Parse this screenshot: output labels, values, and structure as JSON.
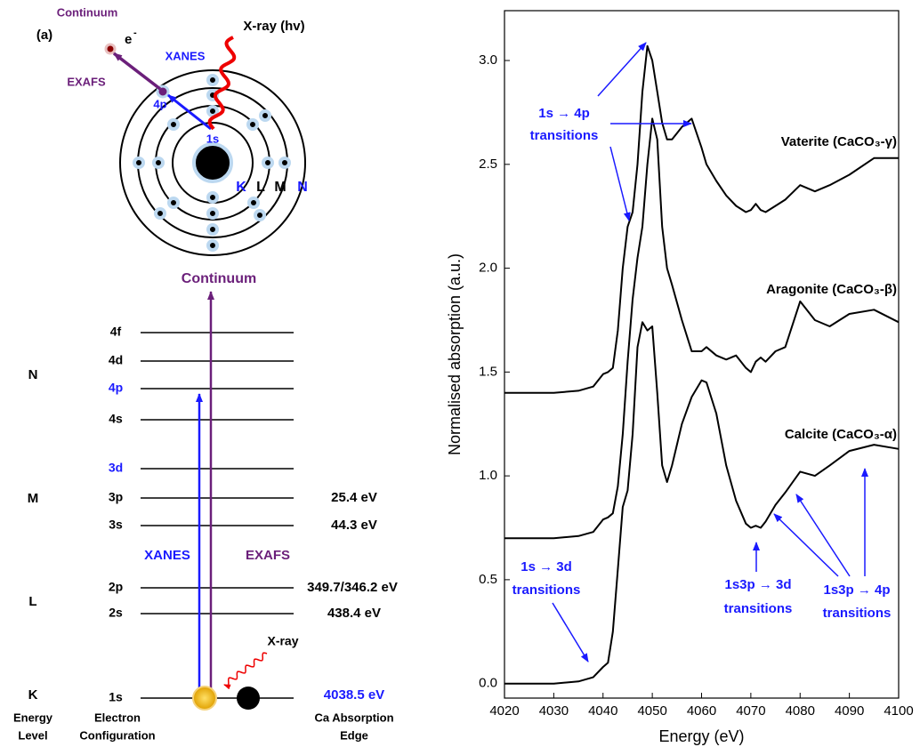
{
  "diagram": {
    "panel_label": "(a)",
    "atom": {
      "continuum": "Continuum",
      "electron": "e",
      "electron_charge": "-",
      "xray": "X-ray (hv)",
      "xanes": "XANES",
      "exafs": "EXAFS",
      "orbital_4p": "4p",
      "orbital_1s": "1s",
      "shells": [
        "K",
        "L",
        "M",
        "N"
      ]
    },
    "levels": {
      "continuum": "Continuum",
      "shells": [
        "N",
        "M",
        "L",
        "K"
      ],
      "orbitals": [
        "4f",
        "4d",
        "4p",
        "4s",
        "3d",
        "3p",
        "3s",
        "2p",
        "2s",
        "1s"
      ],
      "energies": [
        "25.4 eV",
        "44.3 eV",
        "349.7/346.2 eV",
        "438.4 eV",
        "4038.5 eV"
      ],
      "xanes": "XANES",
      "exafs": "EXAFS",
      "xray": "X-ray",
      "footer": [
        [
          "Energy",
          "Level"
        ],
        [
          "Electron",
          "Configuration"
        ],
        [
          "Ca Absorption",
          "Edge"
        ]
      ]
    }
  },
  "chart_data": {
    "type": "line",
    "xlabel": "Energy (eV)",
    "ylabel": "Normalised absorption (a.u.)",
    "x": [
      4020,
      4030,
      4035,
      4038,
      4040,
      4041,
      4042,
      4043,
      4044,
      4045,
      4046,
      4047,
      4048,
      4049,
      4050,
      4051,
      4052,
      4053,
      4054,
      4056,
      4058,
      4060,
      4061,
      4063,
      4065,
      4067,
      4069,
      4070,
      4071,
      4072,
      4073,
      4075,
      4077,
      4080,
      4083,
      4086,
      4090,
      4095,
      4100
    ],
    "series": [
      {
        "name": "Vaterite (CaCO₃-γ)",
        "color": "#000000",
        "values": [
          1.4,
          1.4,
          1.41,
          1.43,
          1.49,
          1.5,
          1.52,
          1.7,
          2.0,
          2.2,
          2.27,
          2.5,
          2.85,
          3.07,
          3.0,
          2.85,
          2.7,
          2.62,
          2.62,
          2.68,
          2.72,
          2.58,
          2.5,
          2.42,
          2.35,
          2.3,
          2.27,
          2.28,
          2.31,
          2.28,
          2.27,
          2.3,
          2.33,
          2.4,
          2.37,
          2.4,
          2.45,
          2.53,
          2.53
        ]
      },
      {
        "name": "Aragonite (CaCO₃-β)",
        "color": "#000000",
        "values": [
          0.7,
          0.7,
          0.71,
          0.73,
          0.79,
          0.8,
          0.82,
          0.95,
          1.2,
          1.55,
          1.85,
          2.05,
          2.2,
          2.5,
          2.72,
          2.62,
          2.2,
          2.0,
          1.92,
          1.75,
          1.6,
          1.6,
          1.62,
          1.58,
          1.56,
          1.58,
          1.52,
          1.5,
          1.55,
          1.57,
          1.55,
          1.6,
          1.62,
          1.84,
          1.75,
          1.72,
          1.78,
          1.8,
          1.74
        ]
      },
      {
        "name": "Calcite (CaCO₃-α)",
        "color": "#000000",
        "values": [
          0,
          0,
          0.01,
          0.03,
          0.08,
          0.1,
          0.25,
          0.55,
          0.85,
          0.93,
          1.2,
          1.62,
          1.74,
          1.7,
          1.72,
          1.4,
          1.05,
          0.97,
          1.05,
          1.25,
          1.38,
          1.46,
          1.45,
          1.3,
          1.05,
          0.88,
          0.77,
          0.75,
          0.76,
          0.75,
          0.78,
          0.86,
          0.92,
          1.02,
          1.0,
          1.05,
          1.12,
          1.15,
          1.13
        ]
      }
    ],
    "xlim": [
      4020,
      4100
    ],
    "xticks": [
      4020,
      4030,
      4040,
      4050,
      4060,
      4070,
      4080,
      4090,
      4100
    ],
    "ylim": [
      -0.07,
      3.24
    ],
    "yticks": [
      {
        "value": 0,
        "label": "0.0"
      },
      0.5,
      {
        "value": 1,
        "label": "1.0"
      },
      1.5,
      {
        "value": 2,
        "label": "2.0"
      },
      2.5,
      {
        "value": 3,
        "label": "3.0"
      }
    ],
    "annotations": [
      {
        "text": [
          "1s → 4p",
          "transitions"
        ]
      },
      {
        "text": [
          "1s → 3d",
          "transitions"
        ]
      },
      {
        "text": [
          "1s3p → 3d",
          "transitions"
        ]
      },
      {
        "text": [
          "1s3p → 4p",
          "transitions"
        ]
      }
    ]
  }
}
